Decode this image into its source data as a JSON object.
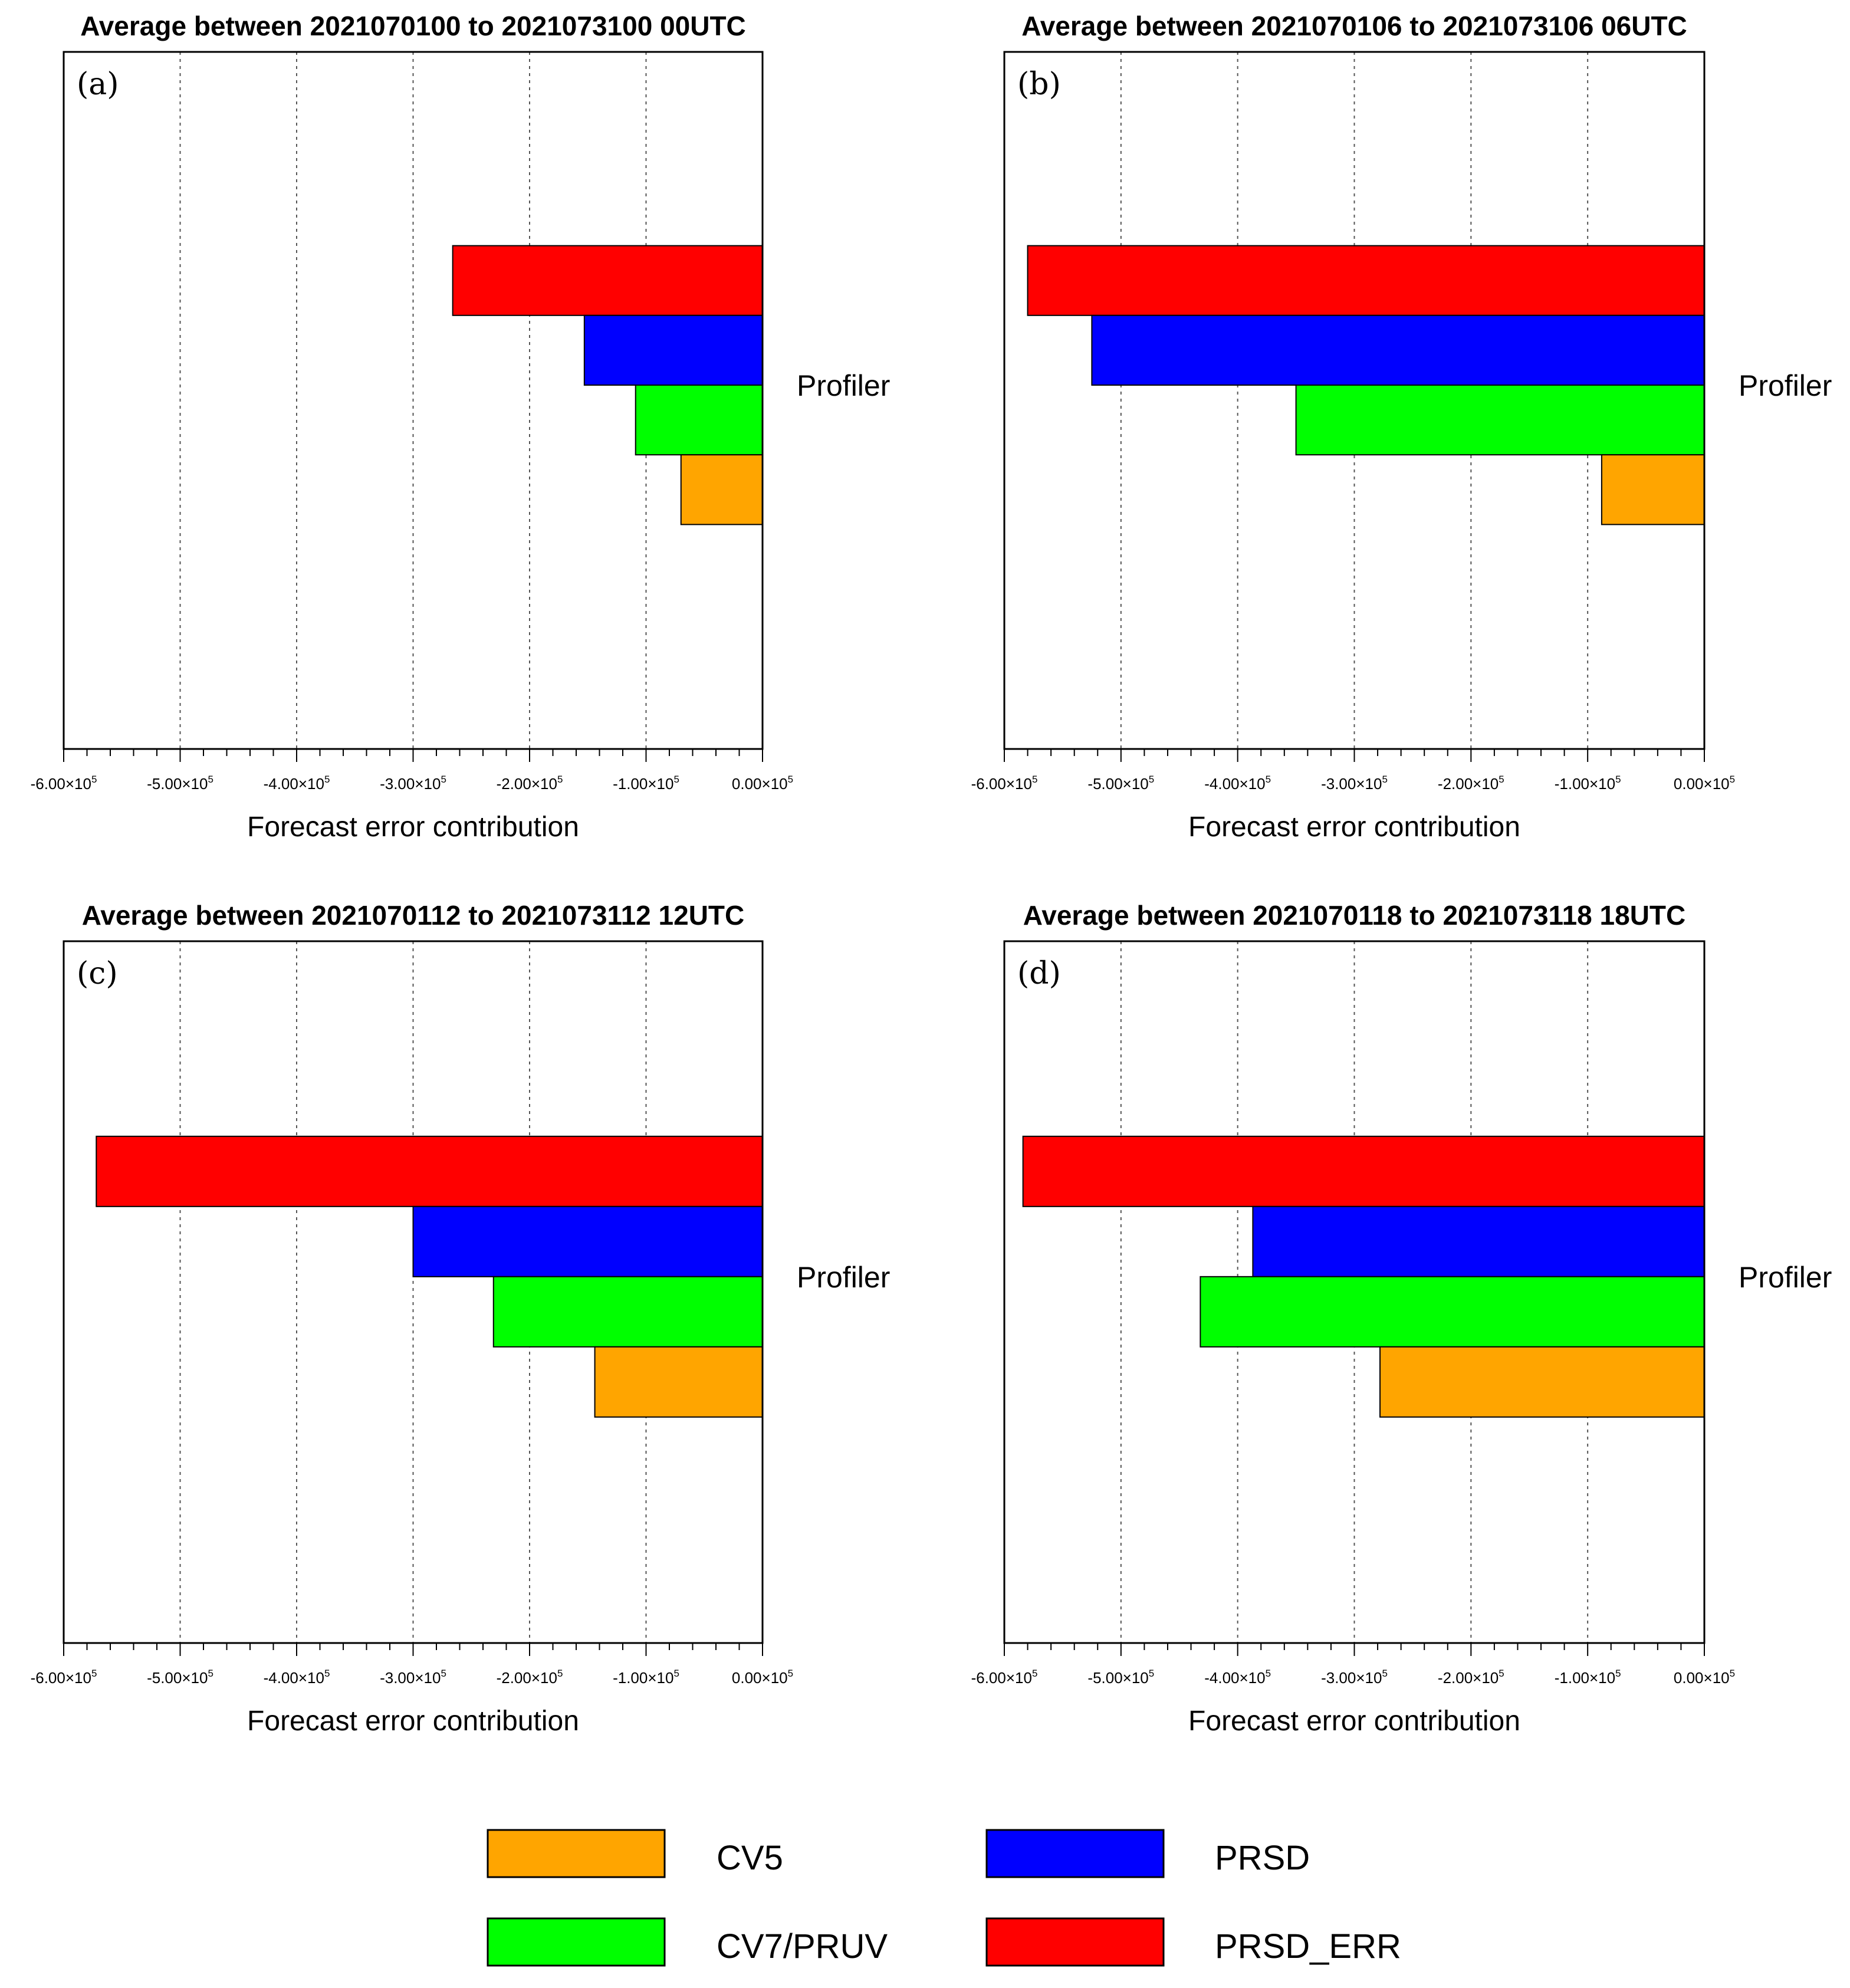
{
  "chart_data": [
    {
      "type": "bar",
      "orientation": "horizontal",
      "panel_label": "(a)",
      "title": "Average between 2021070100 to 2021073100  00UTC",
      "xlabel": "Forecast error contribution",
      "ylabel": "",
      "category": "Profiler",
      "xlim": [
        -600000,
        0
      ],
      "grid": "vertical dotted",
      "xticks": [
        "-6.00×10",
        "-5.00×10",
        "-4.00×10",
        "-3.00×10",
        "-2.00×10",
        "-1.00×10",
        "0.00×10"
      ],
      "xtick_exponent": "5",
      "series": [
        {
          "name": "PRSD_ERR",
          "value": -266000
        },
        {
          "name": "PRSD",
          "value": -153000
        },
        {
          "name": "CV7/PRUV",
          "value": -109000
        },
        {
          "name": "CV5",
          "value": -70000
        }
      ]
    },
    {
      "type": "bar",
      "orientation": "horizontal",
      "panel_label": "(b)",
      "title": "Average between 2021070106 to 2021073106  06UTC",
      "xlabel": "Forecast error contribution",
      "ylabel": "",
      "category": "Profiler",
      "xlim": [
        -600000,
        0
      ],
      "grid": "vertical dotted",
      "xticks": [
        "-6.00×10",
        "-5.00×10",
        "-4.00×10",
        "-3.00×10",
        "-2.00×10",
        "-1.00×10",
        "0.00×10"
      ],
      "xtick_exponent": "5",
      "series": [
        {
          "name": "PRSD_ERR",
          "value": -580000
        },
        {
          "name": "PRSD",
          "value": -525000
        },
        {
          "name": "CV7/PRUV",
          "value": -350000
        },
        {
          "name": "CV5",
          "value": -88000
        }
      ]
    },
    {
      "type": "bar",
      "orientation": "horizontal",
      "panel_label": "(c)",
      "title": "Average between 2021070112 to 2021073112  12UTC",
      "xlabel": "Forecast error contribution",
      "ylabel": "",
      "category": "Profiler",
      "xlim": [
        -600000,
        0
      ],
      "grid": "vertical dotted",
      "xticks": [
        "-6.00×10",
        "-5.00×10",
        "-4.00×10",
        "-3.00×10",
        "-2.00×10",
        "-1.00×10",
        "0.00×10"
      ],
      "xtick_exponent": "5",
      "series": [
        {
          "name": "PRSD_ERR",
          "value": -572000
        },
        {
          "name": "PRSD",
          "value": -300000
        },
        {
          "name": "CV7/PRUV",
          "value": -231000
        },
        {
          "name": "CV5",
          "value": -144000
        }
      ]
    },
    {
      "type": "bar",
      "orientation": "horizontal",
      "panel_label": "(d)",
      "title": "Average between 2021070118 to 2021073118  18UTC",
      "xlabel": "Forecast error contribution",
      "ylabel": "",
      "category": "Profiler",
      "xlim": [
        -600000,
        0
      ],
      "grid": "vertical dotted",
      "xticks": [
        "-6.00×10",
        "-5.00×10",
        "-4.00×10",
        "-3.00×10",
        "-2.00×10",
        "-1.00×10",
        "0.00×10"
      ],
      "xtick_exponent": "5",
      "series": [
        {
          "name": "PRSD_ERR",
          "value": -584000
        },
        {
          "name": "PRSD",
          "value": -387000
        },
        {
          "name": "CV7/PRUV",
          "value": -432000
        },
        {
          "name": "CV5",
          "value": -278000
        }
      ]
    }
  ],
  "colors": {
    "CV5": "#ffa500",
    "PRSD": "#0000ff",
    "CV7/PRUV": "#00ff00",
    "PRSD_ERR": "#ff0000"
  },
  "legend": {
    "items": [
      {
        "name": "CV5",
        "label": "CV5"
      },
      {
        "name": "PRSD",
        "label": "PRSD"
      },
      {
        "name": "CV7/PRUV",
        "label": "CV7/PRUV"
      },
      {
        "name": "PRSD_ERR",
        "label": "PRSD_ERR"
      }
    ]
  }
}
